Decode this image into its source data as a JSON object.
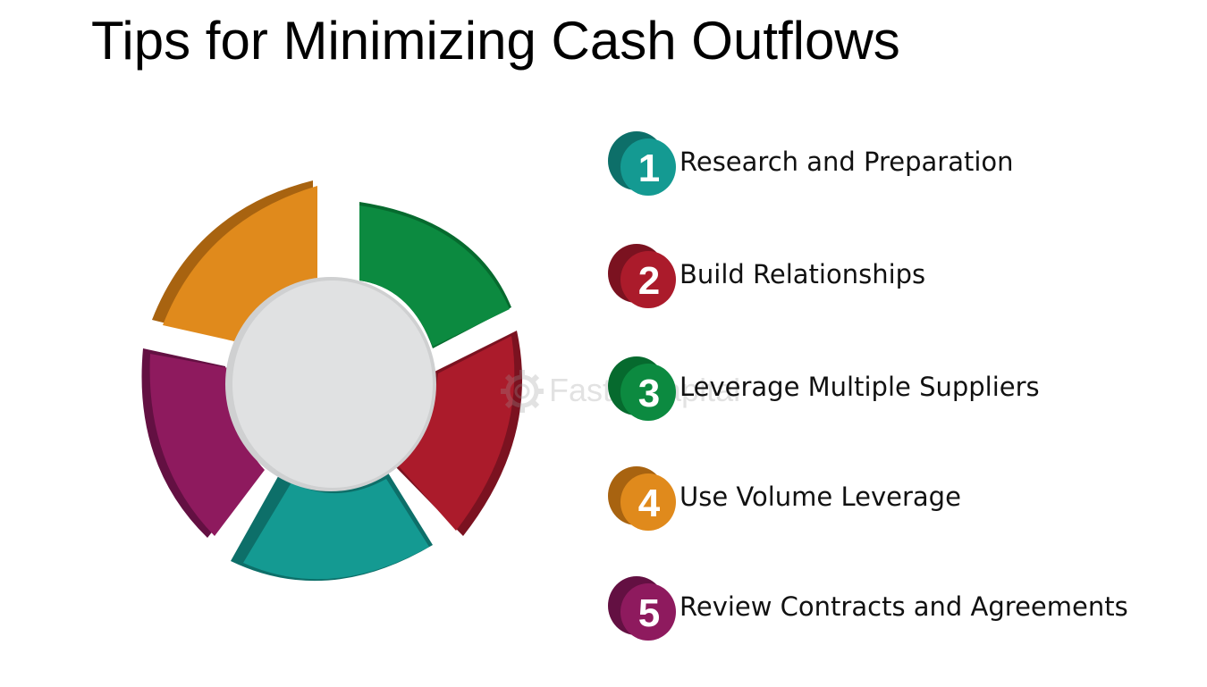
{
  "title": "Tips for Minimizing Cash Outflows",
  "colors": {
    "teal": "#149a92",
    "teal_dark": "#0d6f69",
    "red": "#ab1b2b",
    "red_dark": "#7b1220",
    "green": "#0c8a40",
    "green_dark": "#066a2e",
    "orange": "#e08a1c",
    "orange_dark": "#a86310",
    "purple": "#8e1a5e",
    "purple_dark": "#631042",
    "center": "#e0e1e2"
  },
  "steps": [
    {
      "number": "1",
      "label": "Research and Preparation",
      "color": "teal"
    },
    {
      "number": "2",
      "label": "Build Relationships",
      "color": "red"
    },
    {
      "number": "3",
      "label": "Leverage Multiple Suppliers",
      "color": "green"
    },
    {
      "number": "4",
      "label": "Use Volume Leverage",
      "color": "orange"
    },
    {
      "number": "5",
      "label": "Review Contracts and Agreements",
      "color": "purple"
    }
  ],
  "watermark": {
    "text": "FasterCapital",
    "icon": "gear-icon"
  }
}
